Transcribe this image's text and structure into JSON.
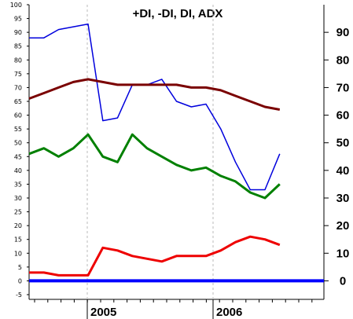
{
  "chart_data": {
    "type": "line",
    "title": "+DI, -DI, DI, ADX",
    "xlabel": "",
    "ylabel": "",
    "ylim": [
      -5,
      100
    ],
    "left_ticks": [
      "-5",
      "0",
      "5",
      "10",
      "15",
      "20",
      "25",
      "30",
      "35",
      "40",
      "45",
      "50",
      "55",
      "60",
      "65",
      "70",
      "75",
      "80",
      "85",
      "90",
      "95",
      "100"
    ],
    "right_ticks": [
      "0",
      "10",
      "20",
      "30",
      "40",
      "50",
      "60",
      "70",
      "80",
      "90"
    ],
    "x_tick_labels": [
      "2005",
      "2006"
    ],
    "x": [
      0,
      1,
      2,
      3,
      4,
      5,
      6,
      7,
      8,
      9,
      10,
      11,
      12,
      13,
      14,
      15,
      16,
      17,
      18,
      19,
      20
    ],
    "series": [
      {
        "name": "",
        "color": "#0000dd",
        "values": [
          88,
          88,
          91,
          92,
          93,
          58,
          59,
          71,
          71,
          73,
          65,
          63,
          64,
          55,
          43,
          33,
          33,
          46,
          null,
          null,
          null
        ]
      },
      {
        "name": "",
        "color": "#7a0000",
        "values": [
          66,
          68,
          70,
          72,
          73,
          72,
          71,
          71,
          71,
          71,
          71,
          70,
          70,
          69,
          67,
          65,
          63,
          62,
          null,
          null,
          null
        ]
      },
      {
        "name": "",
        "color": "#008000",
        "values": [
          46,
          48,
          45,
          48,
          53,
          45,
          43,
          53,
          48,
          45,
          42,
          40,
          41,
          38,
          36,
          32,
          30,
          35,
          null,
          null,
          null
        ]
      },
      {
        "name": "",
        "color": "#ee0000",
        "values": [
          3,
          3,
          2,
          2,
          2,
          12,
          11,
          9,
          8,
          7,
          9,
          9,
          9,
          11,
          14,
          16,
          15,
          13,
          null,
          null,
          null
        ]
      },
      {
        "name": "",
        "color": "#0000ff",
        "values": [
          0,
          0,
          0,
          0,
          0,
          0,
          0,
          0,
          0,
          0,
          0,
          0,
          0,
          0,
          0,
          0,
          0,
          0,
          0,
          0,
          0
        ]
      }
    ],
    "grid": false,
    "vertical_dividers_at": [
      "2005",
      "2006"
    ]
  }
}
